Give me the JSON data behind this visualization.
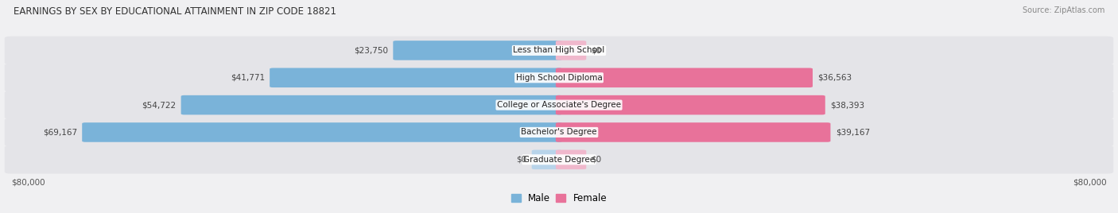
{
  "title": "EARNINGS BY SEX BY EDUCATIONAL ATTAINMENT IN ZIP CODE 18821",
  "source": "Source: ZipAtlas.com",
  "categories": [
    "Less than High School",
    "High School Diploma",
    "College or Associate's Degree",
    "Bachelor's Degree",
    "Graduate Degree"
  ],
  "male_values": [
    23750,
    41771,
    54722,
    69167,
    0
  ],
  "female_values": [
    0,
    36563,
    38393,
    39167,
    0
  ],
  "male_color": "#7ab3d9",
  "female_color": "#e8729a",
  "male_color_light": "#b8d4ea",
  "female_color_light": "#f0b8cc",
  "max_value": 80000,
  "background_color": "#f0f0f2",
  "row_bg_color": "#e4e4e8"
}
